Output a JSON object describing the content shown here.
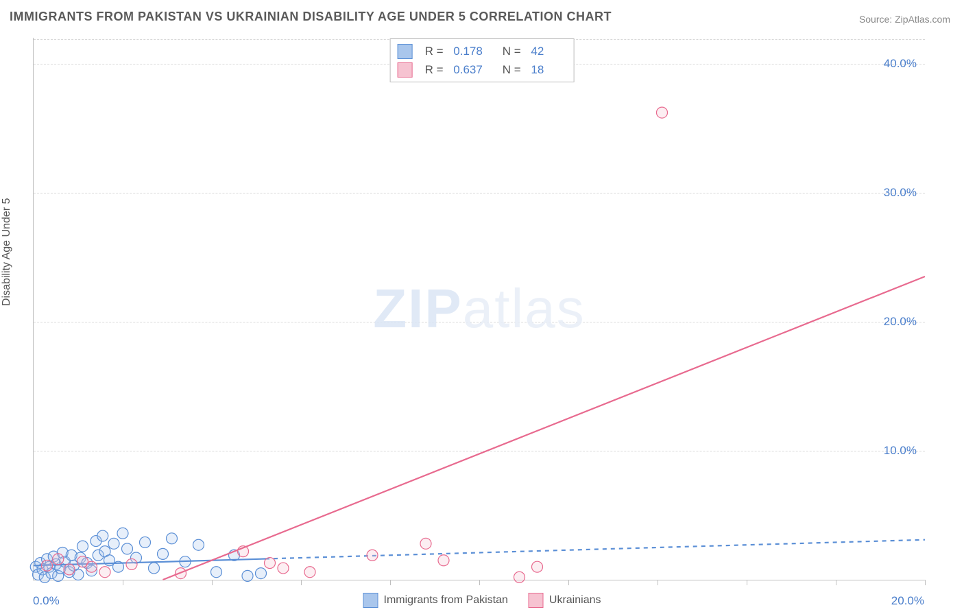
{
  "title": "IMMIGRANTS FROM PAKISTAN VS UKRAINIAN DISABILITY AGE UNDER 5 CORRELATION CHART",
  "source": "Source: ZipAtlas.com",
  "watermark_a": "ZIP",
  "watermark_b": "atlas",
  "ylabel": "Disability Age Under 5",
  "chart": {
    "type": "scatter",
    "background_color": "#ffffff",
    "grid_color": "#d8d8d8",
    "axis_color": "#bfbfbf",
    "tick_label_color": "#4a7ecb",
    "font_family": "Arial",
    "title_fontsize": 18,
    "tick_fontsize": 17,
    "label_fontsize": 16,
    "xlim": [
      0,
      20
    ],
    "ylim": [
      0,
      42
    ],
    "x_tick_step": 2,
    "y_ticks": [
      10,
      20,
      30,
      40
    ],
    "y_tick_labels": [
      "10.0%",
      "20.0%",
      "30.0%",
      "40.0%"
    ],
    "x_origin_label": "0.0%",
    "x_max_label": "20.0%",
    "marker_radius": 8,
    "marker_fill_opacity": 0.28,
    "marker_stroke_width": 1.2,
    "line_width": 2.2,
    "series": [
      {
        "name": "Immigrants from Pakistan",
        "color": "#5b8fd6",
        "fill": "#a9c6ec",
        "R": "0.178",
        "N": "42",
        "line_dash": "6 6",
        "line_solid_until_x": 5.2,
        "trend": {
          "x1": 0,
          "y1": 1.1,
          "x2": 20,
          "y2": 3.1
        },
        "points": [
          [
            0.05,
            1.0
          ],
          [
            0.1,
            0.4
          ],
          [
            0.15,
            1.3
          ],
          [
            0.2,
            0.8
          ],
          [
            0.25,
            0.2
          ],
          [
            0.3,
            1.6
          ],
          [
            0.35,
            1.0
          ],
          [
            0.4,
            0.5
          ],
          [
            0.45,
            1.8
          ],
          [
            0.5,
            1.2
          ],
          [
            0.55,
            0.3
          ],
          [
            0.6,
            0.9
          ],
          [
            0.65,
            2.1
          ],
          [
            0.7,
            1.4
          ],
          [
            0.8,
            0.6
          ],
          [
            0.85,
            1.9
          ],
          [
            0.9,
            1.1
          ],
          [
            1.0,
            0.4
          ],
          [
            1.05,
            1.7
          ],
          [
            1.1,
            2.6
          ],
          [
            1.2,
            1.3
          ],
          [
            1.3,
            0.7
          ],
          [
            1.4,
            3.0
          ],
          [
            1.45,
            1.9
          ],
          [
            1.55,
            3.4
          ],
          [
            1.6,
            2.2
          ],
          [
            1.7,
            1.5
          ],
          [
            1.8,
            2.8
          ],
          [
            1.9,
            1.0
          ],
          [
            2.0,
            3.6
          ],
          [
            2.1,
            2.4
          ],
          [
            2.3,
            1.7
          ],
          [
            2.5,
            2.9
          ],
          [
            2.7,
            0.9
          ],
          [
            2.9,
            2.0
          ],
          [
            3.1,
            3.2
          ],
          [
            3.4,
            1.4
          ],
          [
            3.7,
            2.7
          ],
          [
            4.1,
            0.6
          ],
          [
            4.5,
            1.9
          ],
          [
            4.8,
            0.3
          ],
          [
            5.1,
            0.5
          ]
        ]
      },
      {
        "name": "Ukrainians",
        "color": "#e86a8f",
        "fill": "#f6c3d1",
        "R": "0.637",
        "N": "18",
        "line_dash": "",
        "trend": {
          "x1": 2.9,
          "y1": 0,
          "x2": 20,
          "y2": 23.5
        },
        "points": [
          [
            0.3,
            1.1
          ],
          [
            0.55,
            1.6
          ],
          [
            0.8,
            0.8
          ],
          [
            1.1,
            1.4
          ],
          [
            1.3,
            1.0
          ],
          [
            1.6,
            0.6
          ],
          [
            2.2,
            1.2
          ],
          [
            3.3,
            0.5
          ],
          [
            4.7,
            2.2
          ],
          [
            5.3,
            1.3
          ],
          [
            5.6,
            0.9
          ],
          [
            6.2,
            0.6
          ],
          [
            7.6,
            1.9
          ],
          [
            8.8,
            2.8
          ],
          [
            9.2,
            1.5
          ],
          [
            10.9,
            0.2
          ],
          [
            11.3,
            1.0
          ],
          [
            14.1,
            36.2
          ]
        ]
      }
    ],
    "bottom_legend": [
      {
        "label": "Immigrants from Pakistan",
        "fill": "#a9c6ec",
        "border": "#5b8fd6"
      },
      {
        "label": "Ukrainians",
        "fill": "#f6c3d1",
        "border": "#e86a8f"
      }
    ]
  }
}
